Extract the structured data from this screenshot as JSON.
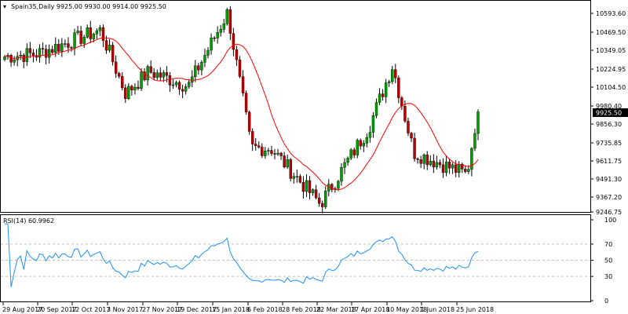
{
  "header": {
    "symbol_line": "Spain35,Daily  9925.00 9930.00 9914.00 9925.50"
  },
  "price_panel": {
    "y_ticks": [
      "10593.60",
      "10469.50",
      "10349.05",
      "10224.95",
      "10104.50",
      "9980.40",
      "9856.30",
      "9735.85",
      "9611.75",
      "9491.30",
      "9367.20",
      "9246.75"
    ],
    "current_price_label": "9925.50",
    "colors": {
      "bull": "#00a000",
      "bear": "#c00000",
      "ma": "#ff0000",
      "price_tag_bg": "#000000",
      "price_tag_text": "#ffffff"
    }
  },
  "rsi_panel": {
    "label": "RSI(14) 60.9962",
    "y_ticks": [
      "100",
      "70",
      "50",
      "30",
      "0"
    ],
    "colors": {
      "line": "#1e90ff",
      "levels": "#c0c0c0"
    }
  },
  "x_axis": {
    "labels": [
      "29 Aug 2017",
      "20 Sep 2017",
      "12 Oct 2017",
      "3 Nov 2017",
      "27 Nov 2017",
      "19 Dec 2017",
      "15 Jan 2018",
      "6 Feb 2018",
      "28 Feb 2018",
      "22 Mar 2018",
      "17 Apr 2018",
      "10 May 2018",
      "1 Jun 2018",
      "25 Jun 2018"
    ]
  },
  "chart_data": [
    {
      "type": "candlestick",
      "x_categories": [
        "29 Aug 2017",
        "20 Sep 2017",
        "12 Oct 2017",
        "3 Nov 2017",
        "27 Nov 2017",
        "19 Dec 2017",
        "15 Jan 2018",
        "6 Feb 2018",
        "28 Feb 2018",
        "22 Mar 2018",
        "17 Apr 2018",
        "10 May 2018",
        "1 Jun 2018",
        "25 Jun 2018"
      ],
      "ylim": [
        9246.75,
        10650
      ],
      "ohlc_last": {
        "open": 9925.0,
        "high": 9930.0,
        "low": 9914.0,
        "close": 9925.5
      },
      "close_path": [
        [
          "29 Aug 2017",
          10300
        ],
        [
          "20 Sep 2017",
          10320
        ],
        [
          "12 Oct 2017",
          10480
        ],
        [
          "3 Nov 2017",
          10050
        ],
        [
          "27 Nov 2017",
          10200
        ],
        [
          "19 Dec 2017",
          10100
        ],
        [
          "15 Jan 2018",
          10600
        ],
        [
          "6 Feb 2018",
          9680
        ],
        [
          "28 Feb 2018",
          9680
        ],
        [
          "22 Mar 2018",
          9300
        ],
        [
          "17 Apr 2018",
          9820
        ],
        [
          "10 May 2018",
          10240
        ],
        [
          "1 Jun 2018",
          9650
        ],
        [
          "25 Jun 2018",
          9500
        ],
        [
          "25 Jun 2018",
          9925.5
        ]
      ],
      "moving_average": {
        "name": "",
        "color": "#ff0000"
      }
    },
    {
      "type": "line",
      "title": "RSI(14) 60.9962",
      "ylim": [
        0,
        100
      ],
      "levels": [
        70,
        50,
        30
      ],
      "last_value": 60.9962
    }
  ]
}
